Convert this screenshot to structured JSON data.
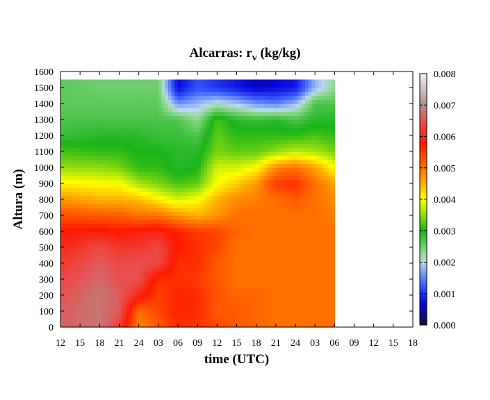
{
  "chart_data": {
    "type": "heatmap",
    "title_main": "Alcarras: r",
    "title_sub": "v",
    "title_tail": " (kg/kg)",
    "xlabel": "time (UTC)",
    "ylabel": "Altura (m)",
    "x_tick_labels": [
      "12",
      "15",
      "18",
      "21",
      "24",
      "03",
      "06",
      "09",
      "12",
      "15",
      "18",
      "21",
      "24",
      "03",
      "06",
      "09",
      "12",
      "15",
      "18"
    ],
    "x_range_hours": [
      0,
      54
    ],
    "y_ticks": [
      0,
      100,
      200,
      300,
      400,
      500,
      600,
      700,
      800,
      900,
      1000,
      1100,
      1200,
      1300,
      1400,
      1500,
      1600
    ],
    "ylim": [
      0,
      1600
    ],
    "data_top_m": 1550,
    "colorbar": {
      "ticks": [
        "0.000",
        "0.001",
        "0.002",
        "0.003",
        "0.004",
        "0.005",
        "0.006",
        "0.007",
        "0.008"
      ],
      "range": [
        0,
        0.008
      ],
      "stops": [
        {
          "v": 0.0,
          "color": "#101030"
        },
        {
          "v": 0.0007,
          "color": "#0808d8"
        },
        {
          "v": 0.0013,
          "color": "#3a60ff"
        },
        {
          "v": 0.002,
          "color": "#b8d8ee"
        },
        {
          "v": 0.0023,
          "color": "#90d890"
        },
        {
          "v": 0.003,
          "color": "#18b418"
        },
        {
          "v": 0.0035,
          "color": "#90dc10"
        },
        {
          "v": 0.004,
          "color": "#ffff00"
        },
        {
          "v": 0.0045,
          "color": "#ffb000"
        },
        {
          "v": 0.005,
          "color": "#ff7000"
        },
        {
          "v": 0.0058,
          "color": "#ff1800"
        },
        {
          "v": 0.0065,
          "color": "#e85050"
        },
        {
          "v": 0.007,
          "color": "#b09090"
        },
        {
          "v": 0.008,
          "color": "#f0f0f0"
        }
      ]
    },
    "grid": false,
    "profiles": [
      {
        "t": 0,
        "values": [
          0.0066,
          0.0066,
          0.0065,
          0.0064,
          0.0062,
          0.006,
          0.0058,
          0.0053,
          0.0047,
          0.0041,
          0.0035,
          0.0032,
          0.0028,
          0.0027,
          0.0026,
          0.0026
        ]
      },
      {
        "t": 6,
        "values": [
          0.0068,
          0.0068,
          0.0068,
          0.0067,
          0.0066,
          0.0064,
          0.0059,
          0.0052,
          0.0045,
          0.004,
          0.0035,
          0.0031,
          0.0029,
          0.0027,
          0.0026,
          0.0025
        ]
      },
      {
        "t": 9,
        "values": [
          0.0063,
          0.0066,
          0.0066,
          0.0065,
          0.0064,
          0.0062,
          0.0058,
          0.0052,
          0.0045,
          0.004,
          0.0034,
          0.0031,
          0.0029,
          0.0027,
          0.0026,
          0.0025
        ]
      },
      {
        "t": 12,
        "values": [
          0.0048,
          0.005,
          0.006,
          0.0065,
          0.0065,
          0.0062,
          0.0059,
          0.005,
          0.0044,
          0.0036,
          0.0031,
          0.003,
          0.0029,
          0.0027,
          0.0026,
          0.0025
        ]
      },
      {
        "t": 15,
        "values": [
          0.0052,
          0.0054,
          0.0054,
          0.0056,
          0.0064,
          0.0064,
          0.006,
          0.005,
          0.0041,
          0.0034,
          0.0031,
          0.003,
          0.0028,
          0.0027,
          0.0026,
          0.0025
        ]
      },
      {
        "t": 18,
        "values": [
          0.0056,
          0.0057,
          0.0057,
          0.0056,
          0.0056,
          0.0058,
          0.0057,
          0.0047,
          0.0038,
          0.0032,
          0.0029,
          0.0029,
          0.0028,
          0.0027,
          0.0016,
          0.0007
        ]
      },
      {
        "t": 21,
        "values": [
          0.0055,
          0.0056,
          0.0056,
          0.0055,
          0.0056,
          0.0056,
          0.0055,
          0.0045,
          0.004,
          0.0033,
          0.003,
          0.0029,
          0.0027,
          0.0023,
          0.0018,
          0.0012
        ]
      },
      {
        "t": 24,
        "values": [
          0.0054,
          0.0052,
          0.0053,
          0.0052,
          0.0052,
          0.0054,
          0.0054,
          0.0047,
          0.0045,
          0.004,
          0.0038,
          0.0034,
          0.0033,
          0.0032,
          0.0021,
          0.001
        ]
      },
      {
        "t": 27,
        "values": [
          0.0052,
          0.0052,
          0.0051,
          0.005,
          0.005,
          0.005,
          0.0051,
          0.005,
          0.0048,
          0.0043,
          0.0038,
          0.0033,
          0.0031,
          0.0029,
          0.0019,
          0.0008
        ]
      },
      {
        "t": 30,
        "values": [
          0.0051,
          0.0051,
          0.0051,
          0.005,
          0.005,
          0.005,
          0.005,
          0.005,
          0.0049,
          0.0047,
          0.004,
          0.0033,
          0.0031,
          0.0028,
          0.0016,
          0.0006
        ]
      },
      {
        "t": 33,
        "values": [
          0.005,
          0.005,
          0.005,
          0.005,
          0.005,
          0.005,
          0.005,
          0.005,
          0.005,
          0.0055,
          0.0048,
          0.0035,
          0.0031,
          0.0029,
          0.0015,
          0.0007
        ]
      },
      {
        "t": 36,
        "values": [
          0.005,
          0.005,
          0.005,
          0.005,
          0.005,
          0.005,
          0.005,
          0.005,
          0.0052,
          0.0056,
          0.005,
          0.0037,
          0.0031,
          0.0027,
          0.0018,
          0.0008
        ]
      },
      {
        "t": 39,
        "values": [
          0.005,
          0.005,
          0.005,
          0.005,
          0.005,
          0.005,
          0.005,
          0.005,
          0.005,
          0.005,
          0.0046,
          0.0036,
          0.0032,
          0.0029,
          0.0027,
          0.0018
        ]
      },
      {
        "t": 42,
        "values": [
          0.005,
          0.005,
          0.005,
          0.005,
          0.005,
          0.005,
          0.005,
          0.0049,
          0.0048,
          0.0046,
          0.004,
          0.0034,
          0.0031,
          0.0029,
          0.0027,
          0.0023
        ]
      }
    ]
  }
}
